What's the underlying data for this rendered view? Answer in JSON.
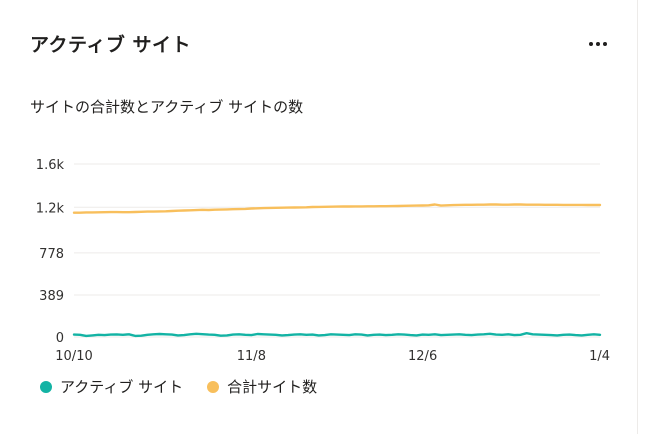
{
  "card": {
    "title": "アクティブ サイト",
    "more_label": "..."
  },
  "colors": {
    "active_sites": "#13b3a4",
    "total_sites": "#f8bf5c",
    "grid": "#edebe9"
  },
  "icons": {
    "more": "more-horizontal-icon"
  },
  "chart_data": {
    "type": "line",
    "title": "サイトの合計数とアクティブ サイトの数",
    "xlabel": "",
    "ylabel": "",
    "ylim": [
      0,
      1600
    ],
    "yticks": [
      {
        "value": 0,
        "label": "0"
      },
      {
        "value": 389,
        "label": "389"
      },
      {
        "value": 778,
        "label": "778"
      },
      {
        "value": 1200,
        "label": "1.2k"
      },
      {
        "value": 1600,
        "label": "1.6k"
      }
    ],
    "x_start": "10/10",
    "x_end": "1/4",
    "xticks": [
      {
        "index": 0,
        "label": "10/10"
      },
      {
        "index": 29,
        "label": "11/8"
      },
      {
        "index": 57,
        "label": "12/6"
      },
      {
        "index": 86,
        "label": "1/4"
      }
    ],
    "grid": true,
    "legend_position": "bottom-left",
    "series": [
      {
        "name": "アクティブ サイト",
        "color": "#13b3a4",
        "values": [
          22,
          20,
          10,
          15,
          20,
          18,
          22,
          24,
          20,
          25,
          10,
          12,
          20,
          25,
          28,
          25,
          22,
          15,
          18,
          25,
          30,
          26,
          22,
          20,
          12,
          15,
          22,
          25,
          20,
          18,
          28,
          25,
          22,
          20,
          15,
          18,
          22,
          25,
          20,
          22,
          15,
          18,
          25,
          22,
          20,
          18,
          25,
          22,
          15,
          20,
          22,
          18,
          20,
          25,
          22,
          18,
          15,
          22,
          20,
          25,
          18,
          20,
          22,
          25,
          20,
          18,
          22,
          25,
          30,
          22,
          20,
          25,
          18,
          20,
          35,
          25,
          22,
          20,
          18,
          15,
          20,
          22,
          18,
          15,
          20,
          25,
          20
        ]
      },
      {
        "name": "合計サイト数",
        "color": "#f8bf5c",
        "values": [
          1150,
          1150,
          1152,
          1152,
          1153,
          1154,
          1155,
          1155,
          1154,
          1154,
          1156,
          1158,
          1160,
          1160,
          1162,
          1163,
          1165,
          1168,
          1170,
          1172,
          1174,
          1176,
          1175,
          1177,
          1178,
          1180,
          1182,
          1183,
          1185,
          1188,
          1190,
          1192,
          1194,
          1195,
          1196,
          1197,
          1198,
          1199,
          1200,
          1202,
          1203,
          1204,
          1205,
          1206,
          1207,
          1207,
          1208,
          1208,
          1209,
          1209,
          1210,
          1210,
          1211,
          1212,
          1213,
          1214,
          1215,
          1216,
          1218,
          1225,
          1215,
          1218,
          1220,
          1222,
          1223,
          1223,
          1224,
          1224,
          1225,
          1225,
          1224,
          1224,
          1225,
          1225,
          1224,
          1224,
          1224,
          1223,
          1223,
          1223,
          1222,
          1222,
          1222,
          1222,
          1221,
          1221,
          1221
        ]
      }
    ]
  }
}
